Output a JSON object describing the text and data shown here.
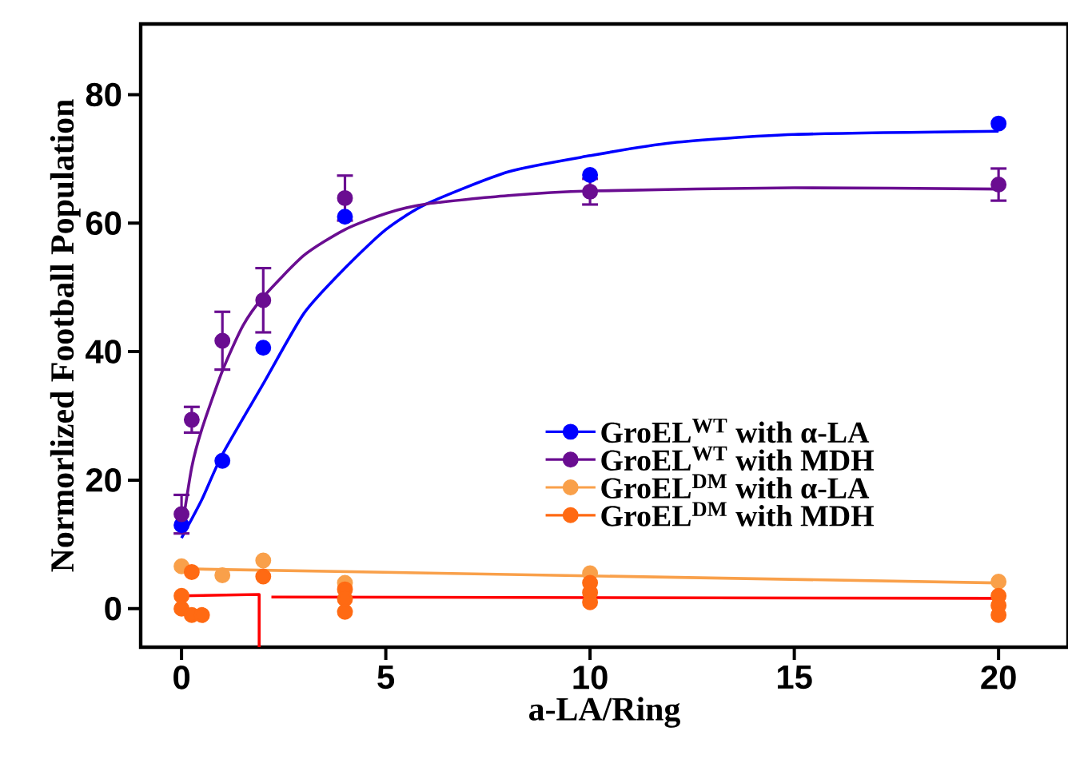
{
  "chart_data": {
    "type": "scatter",
    "xlabel": "a-LA/Ring",
    "ylabel": "Normorlized Football Population",
    "xlim": [
      -1,
      21.7
    ],
    "ylim": [
      -6,
      91
    ],
    "xticks": [
      0,
      5,
      10,
      15,
      20
    ],
    "yticks": [
      0,
      20,
      40,
      60,
      80
    ],
    "grid": false,
    "legend": "bottom right",
    "series": [
      {
        "type": "line",
        "marker": "none",
        "color": "#0000ff",
        "x": [
          0,
          0.5,
          1,
          2,
          3,
          4,
          5,
          6,
          8,
          10,
          12,
          15,
          20
        ],
        "values": [
          11,
          17,
          24,
          35,
          46,
          53,
          59,
          63,
          68,
          70.5,
          72.5,
          73.8,
          74.3
        ]
      },
      {
        "type": "line",
        "marker": "none",
        "color": "#6a0d91",
        "x": [
          0,
          0.25,
          0.5,
          1,
          1.5,
          2,
          3,
          4,
          5,
          6,
          8,
          10,
          15,
          20
        ],
        "values": [
          12,
          22,
          28,
          37,
          44,
          48.5,
          55,
          59,
          61.5,
          63,
          64.3,
          65,
          65.5,
          65.3
        ]
      },
      {
        "type": "line",
        "marker": "none",
        "color": "#f9a04a",
        "x": [
          0,
          20
        ],
        "values": [
          6.2,
          4.0
        ]
      },
      {
        "type": "line",
        "marker": "none",
        "color": "#ff0000",
        "x": [
          0,
          1.9,
          1.9,
          2.1,
          2.2,
          20
        ],
        "values": [
          2,
          2.2,
          -6,
          null,
          1.8,
          1.6
        ]
      },
      {
        "marker": "circle",
        "name": "GroEL$^{WT}$ with α-LA",
        "color": "#0000ff",
        "x": [
          0,
          1,
          2,
          4,
          10,
          20
        ],
        "values": [
          13,
          23,
          40.6,
          61,
          67.5,
          75.5
        ]
      },
      {
        "marker": "circle",
        "name": "GroEL$^{WT}$ with MDH",
        "color": "#6a0d91",
        "x": [
          0,
          0.25,
          1,
          2,
          4,
          10,
          20
        ],
        "values": [
          14.7,
          29.4,
          41.7,
          48,
          63.9,
          64.9,
          66
        ],
        "errors": [
          3,
          2,
          4.5,
          5,
          3.5,
          2,
          2.5
        ]
      },
      {
        "marker": "circle",
        "name": "GroEL$^{DM}$ with α-LA",
        "color": "#f9a04a",
        "x": [
          0,
          1,
          2,
          4,
          10,
          20
        ],
        "values": [
          6.6,
          5.2,
          7.5,
          4,
          5.5,
          4.2
        ]
      },
      {
        "marker": "circle",
        "name": "GroEL$^{DM}$ with MDH",
        "color": "#ff6a13",
        "x": [
          0,
          0,
          0.25,
          0.25,
          0.5,
          2,
          4,
          4,
          4,
          10,
          10,
          10,
          20,
          20,
          20
        ],
        "values": [
          2,
          0,
          5.7,
          -1,
          -1,
          5,
          3,
          1.5,
          -0.5,
          4,
          2.5,
          1,
          2,
          0.5,
          -1
        ]
      }
    ]
  }
}
